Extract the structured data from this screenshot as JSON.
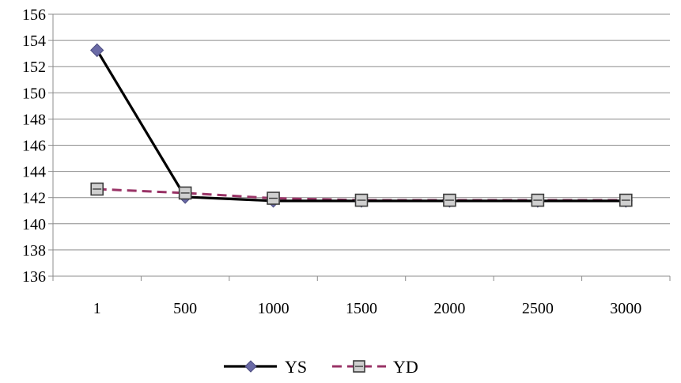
{
  "chart_data": {
    "type": "line",
    "title": "",
    "xlabel": "",
    "ylabel": "",
    "categories": [
      "1",
      "500",
      "1000",
      "1500",
      "2000",
      "2500",
      "3000"
    ],
    "ylim": [
      136,
      156
    ],
    "yticks": [
      136,
      138,
      140,
      142,
      144,
      146,
      148,
      150,
      152,
      154,
      156
    ],
    "grid": "horizontal",
    "legend_position": "bottom",
    "series": [
      {
        "name": "YS",
        "values": [
          153.25,
          142.05,
          141.75,
          141.75,
          141.75,
          141.75,
          141.75
        ],
        "color": "#000000",
        "line_style": "solid",
        "marker": "diamond",
        "marker_color": "#6a6aa6"
      },
      {
        "name": "YD",
        "values": [
          142.65,
          142.35,
          141.95,
          141.8,
          141.8,
          141.8,
          141.8
        ],
        "color": "#993366",
        "line_style": "dashed",
        "marker": "square",
        "marker_color": "#c8c8c8"
      }
    ]
  }
}
